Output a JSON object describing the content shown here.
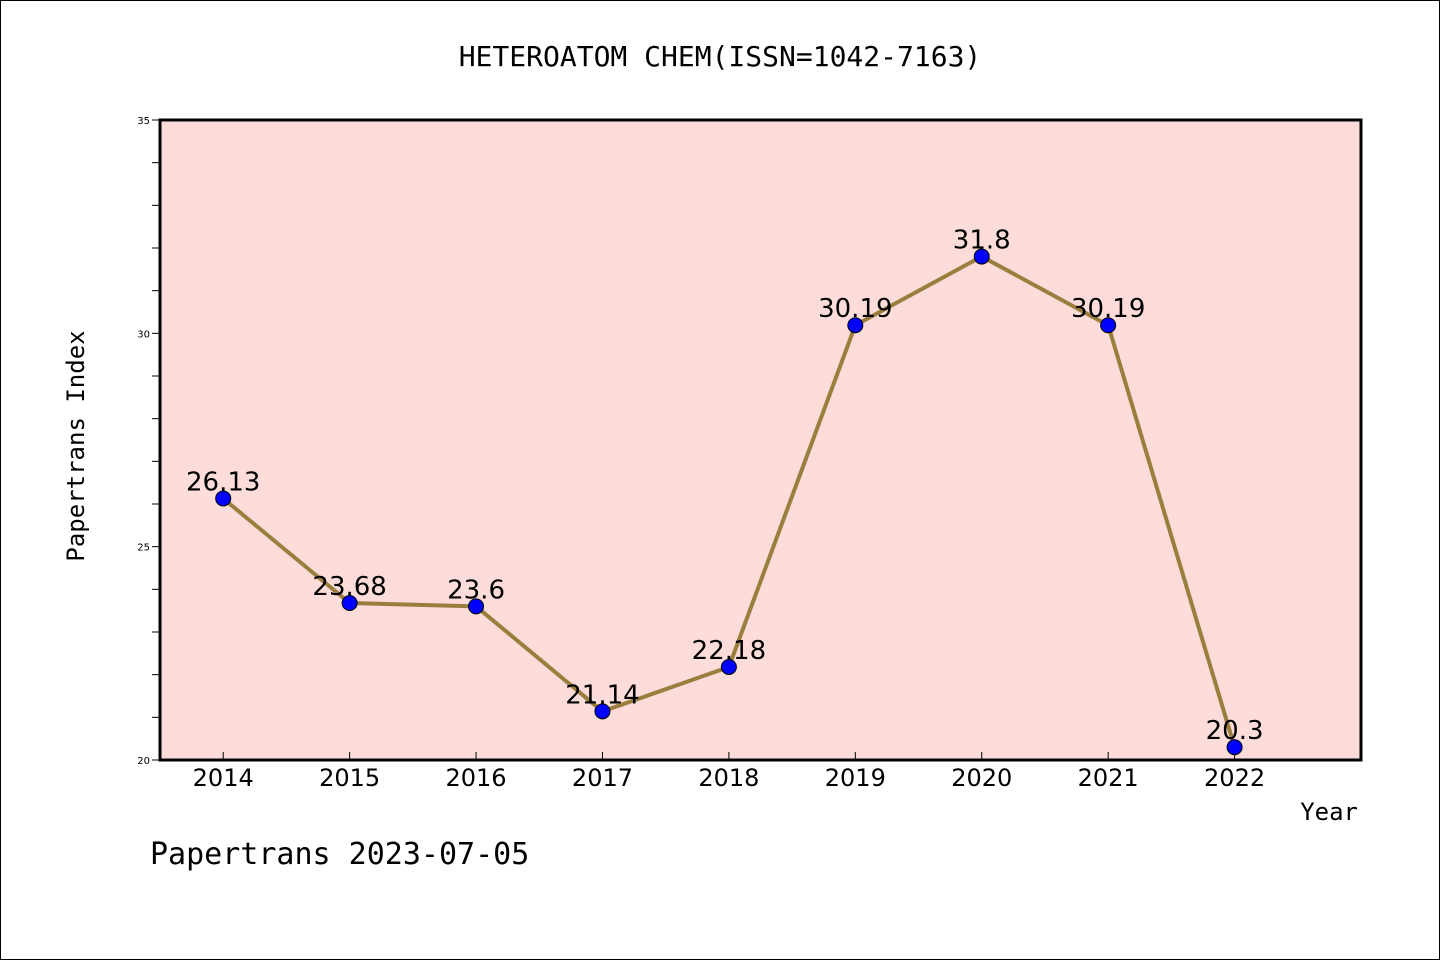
{
  "chart_data": {
    "type": "line",
    "title": "HETEROATOM CHEM(ISSN=1042-7163)",
    "xlabel": "Year",
    "ylabel": "Papertrans Index",
    "categories": [
      "2014",
      "2015",
      "2016",
      "2017",
      "2018",
      "2019",
      "2020",
      "2021",
      "2022"
    ],
    "series": [
      {
        "values": [
          26.13,
          23.68,
          23.6,
          21.14,
          22.18,
          30.19,
          31.8,
          30.19,
          20.3
        ],
        "labels": [
          "26.13",
          "23.68",
          "23.6",
          "21.14",
          "22.18",
          "30.19",
          "31.8",
          "30.19",
          "20.3"
        ]
      }
    ],
    "ylim": [
      20,
      35
    ],
    "yticks": [
      "20",
      "25",
      "30",
      "35"
    ],
    "grid": false,
    "colors": {
      "plot_background": "#fddcd9",
      "line": "#9a7e3e",
      "marker": "#0000ff"
    }
  },
  "footer": {
    "text": "Papertrans 2023-07-05"
  }
}
